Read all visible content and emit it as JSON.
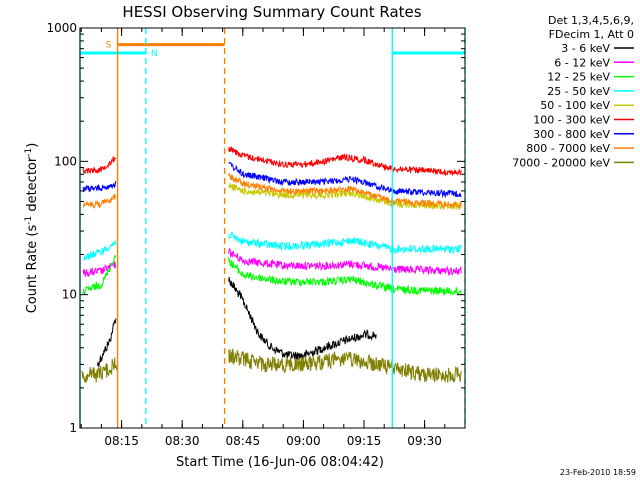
{
  "chart_data": {
    "type": "line",
    "title": "HESSI Observing Summary Count Rates",
    "xlabel": "Start Time (16-Jun-06 08:04:42)",
    "ylabel_main": "Count Rate (s",
    "ylabel_sup1": "-1",
    "ylabel_mid": " detector",
    "ylabel_sup2": "-1",
    "ylabel_end": ")",
    "y_scale": "log",
    "ylim": [
      1,
      1000
    ],
    "xlim": [
      "08:04:42",
      "09:40:00"
    ],
    "x_ticks": [
      "08:15",
      "08:30",
      "08:45",
      "09:00",
      "09:15",
      "09:30"
    ],
    "y_ticks": [
      "1",
      "10",
      "100",
      "1000"
    ],
    "footer_date": "23-Feb-2010 18:59",
    "legend": {
      "placement": "right",
      "header": [
        "Det 1,3,4,5,6,9,",
        "FDecim 1, Att 0"
      ],
      "entries": [
        {
          "label": "3 - 6 keV",
          "color": "#000000"
        },
        {
          "label": "6 - 12 keV",
          "color": "#ff00ff"
        },
        {
          "label": "12 - 25 keV",
          "color": "#00ff00"
        },
        {
          "label": "25 - 50 keV",
          "color": "#00ffff"
        },
        {
          "label": "50 - 100 keV",
          "color": "#c8c800"
        },
        {
          "label": "100 - 300 keV",
          "color": "#ff0000"
        },
        {
          "label": "300 - 800 keV",
          "color": "#0000ff"
        },
        {
          "label": "800 - 7000 keV",
          "color": "#ff7f00"
        },
        {
          "label": "7000 - 20000 keV",
          "color": "#7f7f00"
        }
      ]
    },
    "flags": [
      {
        "label": "S",
        "color": "#ff7f00",
        "value": 750,
        "start": "08:14:00",
        "end": "08:40:30"
      },
      {
        "label": "N",
        "color": "#00ffff",
        "value": 650,
        "start": "08:04:42",
        "end": "08:21:00"
      },
      {
        "label": "",
        "color": "#00ffff",
        "value": 650,
        "start": "09:22:00",
        "end": "09:40:00"
      }
    ],
    "event_lines": [
      {
        "time": "08:04:42",
        "color": "#00ffff",
        "style": "solid"
      },
      {
        "time": "08:14:00",
        "color": "#ff7f00",
        "style": "solid"
      },
      {
        "time": "08:21:00",
        "color": "#00ffff",
        "style": "dashed"
      },
      {
        "time": "08:40:30",
        "color": "#ff7f00",
        "style": "dashed"
      },
      {
        "time": "09:22:00",
        "color": "#00ffff",
        "style": "solid"
      },
      {
        "time": "09:40:00",
        "color": "#00ffff",
        "style": "dashed"
      }
    ],
    "series": [
      {
        "name": "3 - 6 keV",
        "color": "#000000",
        "noise": 0.6,
        "segments": [
          [
            [
              "08:09:00",
              3.0
            ],
            [
              "08:12:00",
              4.5
            ],
            [
              "08:13:40",
              7.0
            ]
          ],
          [
            [
              "08:41:30",
              13.0
            ],
            [
              "08:45:00",
              9.0
            ],
            [
              "08:49:00",
              5.0
            ],
            [
              "08:52:00",
              4.0
            ],
            [
              "08:56:00",
              3.5
            ],
            [
              "09:00:00",
              3.5
            ],
            [
              "09:05:00",
              4.0
            ],
            [
              "09:10:00",
              4.5
            ],
            [
              "09:15:00",
              5.0
            ],
            [
              "09:18:00",
              5.0
            ]
          ]
        ]
      },
      {
        "name": "6 - 12 keV",
        "color": "#ff00ff",
        "noise": 0.5,
        "segments": [
          [
            [
              "08:05:30",
              14.5
            ],
            [
              "08:10:00",
              15.0
            ],
            [
              "08:13:40",
              17.0
            ]
          ],
          [
            [
              "08:41:30",
              21.0
            ],
            [
              "08:45:00",
              18.0
            ],
            [
              "08:55:00",
              16.5
            ],
            [
              "09:05:00",
              16.5
            ],
            [
              "09:12:00",
              17.0
            ],
            [
              "09:22:00",
              15.5
            ],
            [
              "09:39:00",
              15.0
            ]
          ]
        ]
      },
      {
        "name": "12 - 25 keV",
        "color": "#00ff00",
        "noise": 0.5,
        "segments": [
          [
            [
              "08:05:30",
              10.5
            ],
            [
              "08:10:00",
              12.0
            ],
            [
              "08:13:40",
              20.0
            ]
          ],
          [
            [
              "08:41:30",
              18.0
            ],
            [
              "08:45:00",
              14.0
            ],
            [
              "08:55:00",
              12.5
            ],
            [
              "09:05:00",
              12.5
            ],
            [
              "09:12:00",
              13.0
            ],
            [
              "09:22:00",
              11.0
            ],
            [
              "09:39:00",
              10.5
            ]
          ]
        ]
      },
      {
        "name": "25 - 50 keV",
        "color": "#00ffff",
        "noise": 0.5,
        "segments": [
          [
            [
              "08:05:30",
              19.0
            ],
            [
              "08:10:00",
              21.0
            ],
            [
              "08:13:40",
              25.0
            ]
          ],
          [
            [
              "08:41:30",
              28.0
            ],
            [
              "08:45:00",
              25.0
            ],
            [
              "08:55:00",
              23.0
            ],
            [
              "09:05:00",
              24.0
            ],
            [
              "09:12:00",
              25.5
            ],
            [
              "09:22:00",
              22.0
            ],
            [
              "09:39:00",
              22.0
            ]
          ]
        ]
      },
      {
        "name": "50 - 100 keV",
        "color": "#c8c800",
        "noise": 0.4,
        "segments": [
          [
            [
              "08:41:30",
              66.0
            ],
            [
              "08:45:00",
              60.0
            ],
            [
              "08:55:00",
              56.0
            ],
            [
              "09:05:00",
              56.0
            ],
            [
              "09:12:00",
              58.0
            ],
            [
              "09:22:00",
              48.0
            ],
            [
              "09:39:00",
              46.0
            ]
          ]
        ]
      },
      {
        "name": "100 - 300 keV",
        "color": "#ff0000",
        "noise": 0.3,
        "segments": [
          [
            [
              "08:05:30",
              85.0
            ],
            [
              "08:10:00",
              87.0
            ],
            [
              "08:13:40",
              108.0
            ]
          ],
          [
            [
              "08:41:30",
              125.0
            ],
            [
              "08:45:00",
              110.0
            ],
            [
              "08:55:00",
              95.0
            ],
            [
              "09:00:00",
              95.0
            ],
            [
              "09:05:00",
              100.0
            ],
            [
              "09:10:00",
              108.0
            ],
            [
              "09:15:00",
              102.0
            ],
            [
              "09:22:00",
              88.0
            ],
            [
              "09:39:00",
              82.0
            ]
          ]
        ]
      },
      {
        "name": "300 - 800 keV",
        "color": "#0000ff",
        "noise": 0.3,
        "segments": [
          [
            [
              "08:05:30",
              62.0
            ],
            [
              "08:10:00",
              63.0
            ],
            [
              "08:13:40",
              68.0
            ]
          ],
          [
            [
              "08:41:30",
              96.0
            ],
            [
              "08:45:00",
              80.0
            ],
            [
              "08:55:00",
              70.0
            ],
            [
              "09:05:00",
              70.0
            ],
            [
              "09:12:00",
              74.0
            ],
            [
              "09:22:00",
              60.0
            ],
            [
              "09:39:00",
              57.0
            ]
          ]
        ]
      },
      {
        "name": "800 - 7000 keV",
        "color": "#ff7f00",
        "noise": 0.3,
        "segments": [
          [
            [
              "08:05:30",
              47.0
            ],
            [
              "08:10:00",
              48.0
            ],
            [
              "08:13:40",
              55.0
            ]
          ],
          [
            [
              "08:41:30",
              78.0
            ],
            [
              "08:45:00",
              68.0
            ],
            [
              "08:55:00",
              60.0
            ],
            [
              "09:05:00",
              60.0
            ],
            [
              "09:12:00",
              62.0
            ],
            [
              "09:22:00",
              50.0
            ],
            [
              "09:39:00",
              47.0
            ]
          ]
        ]
      },
      {
        "name": "7000 - 20000 keV",
        "color": "#7f7f00",
        "noise": 1.5,
        "segments": [
          [
            [
              "08:05:00",
              2.5
            ],
            [
              "08:09:00",
              2.5
            ],
            [
              "08:13:40",
              3.0
            ]
          ],
          [
            [
              "08:41:30",
              3.5
            ],
            [
              "08:50:00",
              3.0
            ],
            [
              "09:00:00",
              3.0
            ],
            [
              "09:10:00",
              3.3
            ],
            [
              "09:18:00",
              3.0
            ],
            [
              "09:30:00",
              2.5
            ],
            [
              "09:39:00",
              2.5
            ]
          ]
        ]
      }
    ]
  }
}
